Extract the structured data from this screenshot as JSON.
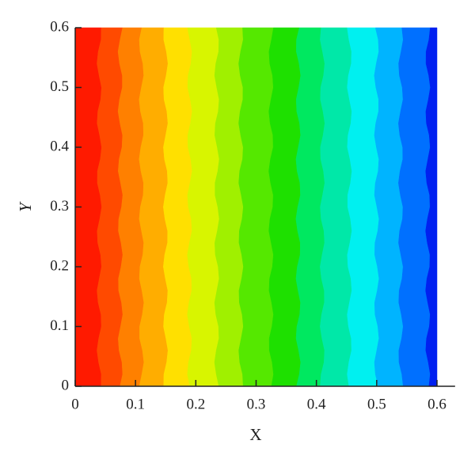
{
  "chart_data": {
    "type": "contour",
    "xlabel": "X",
    "ylabel": "Y",
    "xlim": [
      0,
      0.63
    ],
    "ylim": [
      0,
      0.6
    ],
    "xticks": [
      {
        "value": 0,
        "label": "0"
      },
      0.1,
      0.2,
      0.3,
      0.4,
      0.5,
      0.6
    ],
    "yticks": [
      {
        "value": 0,
        "label": "0"
      },
      0.1,
      0.2,
      0.3,
      0.4,
      0.5,
      0.6
    ],
    "bins": [
      0,
      0.04,
      0.075,
      0.11,
      0.15,
      0.19,
      0.235,
      0.275,
      0.325,
      0.37,
      0.41,
      0.455,
      0.5,
      0.54,
      0.585,
      0.6
    ],
    "colors": [
      "#ff1a00",
      "#ff4a00",
      "#ff8000",
      "#ffad00",
      "#ffe000",
      "#d8f500",
      "#a0f000",
      "#55e800",
      "#1ee000",
      "#00e860",
      "#00e8a8",
      "#00f0f0",
      "#00b4ff",
      "#0070ff",
      "#0020f0"
    ]
  }
}
